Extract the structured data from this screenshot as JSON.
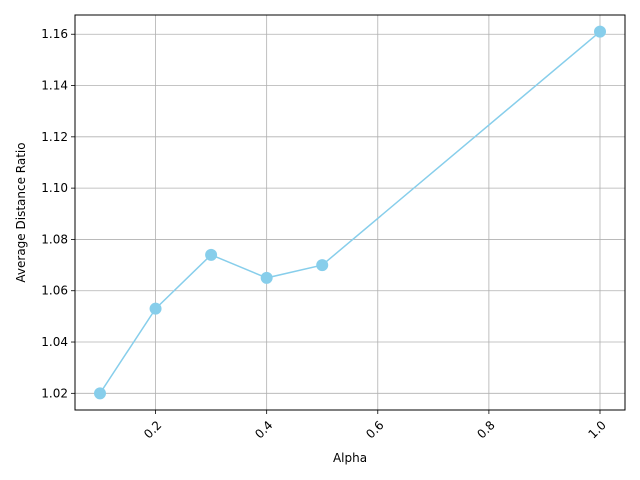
{
  "chart_data": {
    "type": "line",
    "title": "",
    "xlabel": "Alpha",
    "ylabel": "Average Distance Ratio",
    "x": [
      0.1,
      0.2,
      0.3,
      0.4,
      0.5,
      1.0
    ],
    "series": [
      {
        "values": [
          1.02,
          1.053,
          1.074,
          1.065,
          1.07,
          1.161
        ],
        "color": "#87CEEB",
        "marker": "circle"
      }
    ],
    "xlim": [
      0.055,
      1.045
    ],
    "ylim": [
      1.0135,
      1.1675
    ],
    "xticks": [
      0.2,
      0.4,
      0.6,
      0.8,
      1.0
    ],
    "xtick_labels": [
      "0.2",
      "0.4",
      "0.6",
      "0.8",
      "1.0"
    ],
    "xtick_rotation": 45,
    "yticks": [
      1.02,
      1.04,
      1.06,
      1.08,
      1.1,
      1.12,
      1.14,
      1.16
    ],
    "ytick_labels": [
      "1.02",
      "1.04",
      "1.06",
      "1.08",
      "1.10",
      "1.12",
      "1.14",
      "1.16"
    ],
    "grid": true,
    "grid_color": "#b0b0b0",
    "legend": "none"
  }
}
